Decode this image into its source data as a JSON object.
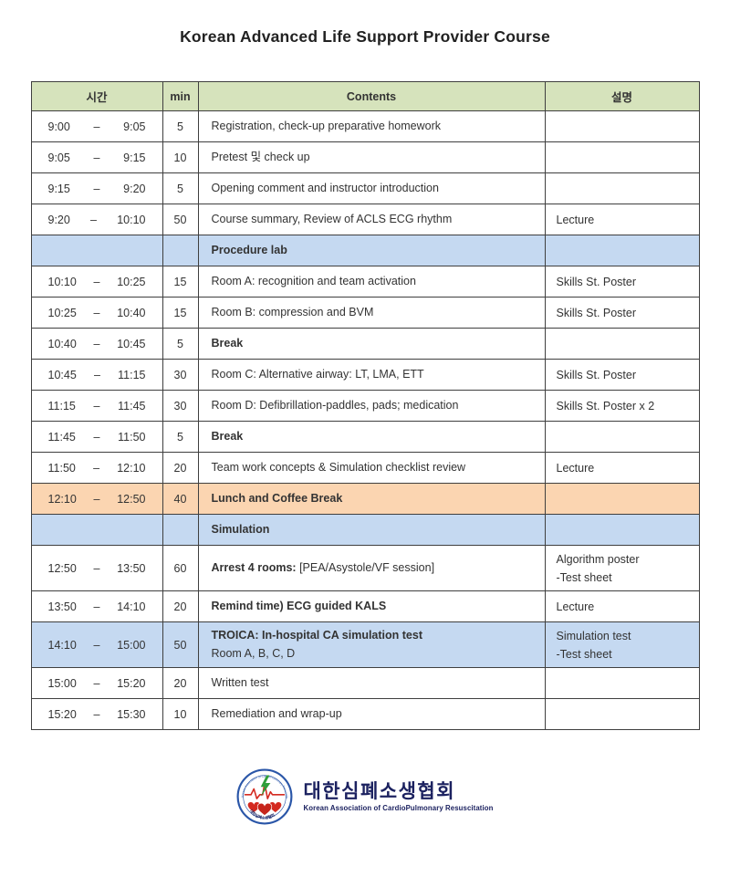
{
  "title": "Korean Advanced Life Support Provider Course",
  "colors": {
    "header_bg": "#d6e3bc",
    "section_bg": "#c5d9f1",
    "lunch_bg": "#fbd5b1",
    "border": "#3f3f3f",
    "logo_navy": "#1c2260",
    "logo_red": "#d42a20",
    "logo_green": "#2f9e3a",
    "logo_blue": "#2a56a8"
  },
  "table": {
    "time_dash": "–",
    "headers": {
      "time": "시간",
      "min": "min",
      "contents": "Contents",
      "desc": "설명"
    },
    "rows": [
      {
        "type": "session",
        "variant": "",
        "start": "9:00",
        "end": "9:05",
        "min": "5",
        "contents": {
          "bold": "",
          "text": "Registration, check-up preparative homework",
          "line2": ""
        },
        "desc": []
      },
      {
        "type": "session",
        "variant": "",
        "start": "9:05",
        "end": "9:15",
        "min": "10",
        "contents": {
          "bold": "",
          "text": "Pretest 및 check up",
          "line2": ""
        },
        "desc": []
      },
      {
        "type": "session",
        "variant": "",
        "start": "9:15",
        "end": "9:20",
        "min": "5",
        "contents": {
          "bold": "",
          "text": "Opening comment and instructor introduction",
          "line2": ""
        },
        "desc": []
      },
      {
        "type": "session",
        "variant": "",
        "start": "9:20",
        "end": "10:10",
        "min": "50",
        "contents": {
          "bold": "",
          "text": "Course summary, Review of ACLS ECG rhythm",
          "line2": ""
        },
        "desc": [
          "Lecture"
        ]
      },
      {
        "type": "section",
        "variant": "blue",
        "start": "",
        "end": "",
        "min": "",
        "contents": {
          "bold": "Procedure lab",
          "text": "",
          "line2": ""
        },
        "desc": []
      },
      {
        "type": "session",
        "variant": "",
        "start": "10:10",
        "end": "10:25",
        "min": "15",
        "contents": {
          "bold": "",
          "text": "Room A: recognition and team activation",
          "line2": ""
        },
        "desc": [
          "Skills St. Poster"
        ]
      },
      {
        "type": "session",
        "variant": "",
        "start": "10:25",
        "end": "10:40",
        "min": "15",
        "contents": {
          "bold": "",
          "text": "Room B: compression and BVM",
          "line2": ""
        },
        "desc": [
          "Skills St. Poster"
        ]
      },
      {
        "type": "session",
        "variant": "",
        "start": "10:40",
        "end": "10:45",
        "min": "5",
        "contents": {
          "bold": "Break",
          "text": "",
          "line2": ""
        },
        "desc": []
      },
      {
        "type": "session",
        "variant": "",
        "start": "10:45",
        "end": "11:15",
        "min": "30",
        "contents": {
          "bold": "",
          "text": "Room C: Alternative airway: LT, LMA, ETT",
          "line2": ""
        },
        "desc": [
          "Skills St. Poster"
        ]
      },
      {
        "type": "session",
        "variant": "",
        "start": "11:15",
        "end": "11:45",
        "min": "30",
        "contents": {
          "bold": "",
          "text": "Room D: Defibrillation-paddles, pads; medication",
          "line2": ""
        },
        "desc": [
          "Skills St. Poster x 2"
        ]
      },
      {
        "type": "session",
        "variant": "",
        "start": "11:45",
        "end": "11:50",
        "min": "5",
        "contents": {
          "bold": "Break",
          "text": "",
          "line2": ""
        },
        "desc": []
      },
      {
        "type": "session",
        "variant": "",
        "start": "11:50",
        "end": "12:10",
        "min": "20",
        "contents": {
          "bold": "",
          "text": "Team work concepts & Simulation checklist review",
          "line2": ""
        },
        "desc": [
          "Lecture"
        ]
      },
      {
        "type": "session",
        "variant": "orange",
        "start": "12:10",
        "end": "12:50",
        "min": "40",
        "contents": {
          "bold": "Lunch and Coffee Break",
          "text": "",
          "line2": ""
        },
        "desc": []
      },
      {
        "type": "section",
        "variant": "blue",
        "start": "",
        "end": "",
        "min": "",
        "contents": {
          "bold": "Simulation",
          "text": "",
          "line2": ""
        },
        "desc": []
      },
      {
        "type": "session",
        "variant": "",
        "tall": true,
        "start": "12:50",
        "end": "13:50",
        "min": "60",
        "contents": {
          "bold": "Arrest 4 rooms:",
          "text": " [PEA/Asystole/VF session]",
          "line2": ""
        },
        "desc": [
          "Algorithm poster",
          "-Test sheet"
        ]
      },
      {
        "type": "session",
        "variant": "",
        "start": "13:50",
        "end": "14:10",
        "min": "20",
        "contents": {
          "bold": "Remind time) ECG guided KALS",
          "text": "",
          "line2": ""
        },
        "desc": [
          "Lecture"
        ]
      },
      {
        "type": "session",
        "variant": "blue",
        "tall": true,
        "start": "14:10",
        "end": "15:00",
        "min": "50",
        "contents": {
          "bold": "TROICA: In-hospital CA simulation test",
          "text": "",
          "line2": "Room A, B, C, D"
        },
        "desc": [
          "Simulation test",
          "-Test sheet"
        ]
      },
      {
        "type": "session",
        "variant": "",
        "start": "15:00",
        "end": "15:20",
        "min": "20",
        "contents": {
          "bold": "",
          "text": "Written test",
          "line2": ""
        },
        "desc": []
      },
      {
        "type": "session",
        "variant": "",
        "start": "15:20",
        "end": "15:30",
        "min": "10",
        "contents": {
          "bold": "",
          "text": "Remediation and wrap-up",
          "line2": ""
        },
        "desc": []
      }
    ]
  },
  "logo": {
    "korean": "대한심폐소생협회",
    "english": "Korean Association of CardioPulmonary Resuscitation",
    "emblem_arc_text": "Korean Association of CardioPulmonary Resuscitation",
    "emblem_arc_text_bottom": "대한심폐소생협회"
  }
}
